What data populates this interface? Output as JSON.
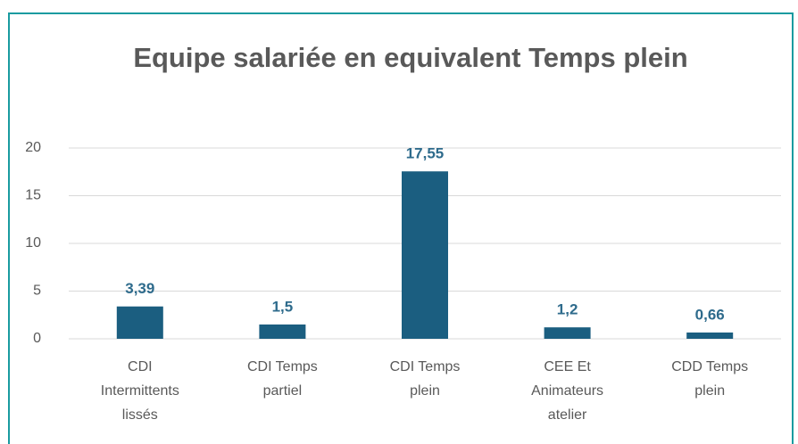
{
  "chart_data": {
    "type": "bar",
    "title": "Equipe salariée en equivalent Temps plein",
    "categories": [
      "CDI Intermittents lissés",
      "CDI Temps partiel",
      "CDI Temps plein",
      "CEE Et Animateurs atelier",
      "CDD Temps plein"
    ],
    "values": [
      3.39,
      1.5,
      17.55,
      1.2,
      0.66
    ],
    "value_labels": [
      "3,39",
      "1,5",
      "17,55",
      "1,2",
      "0,66"
    ],
    "color": "#1b5e80",
    "ylim": [
      0,
      20
    ],
    "yticks": [
      0,
      5,
      10,
      15,
      20
    ],
    "grid": true
  }
}
